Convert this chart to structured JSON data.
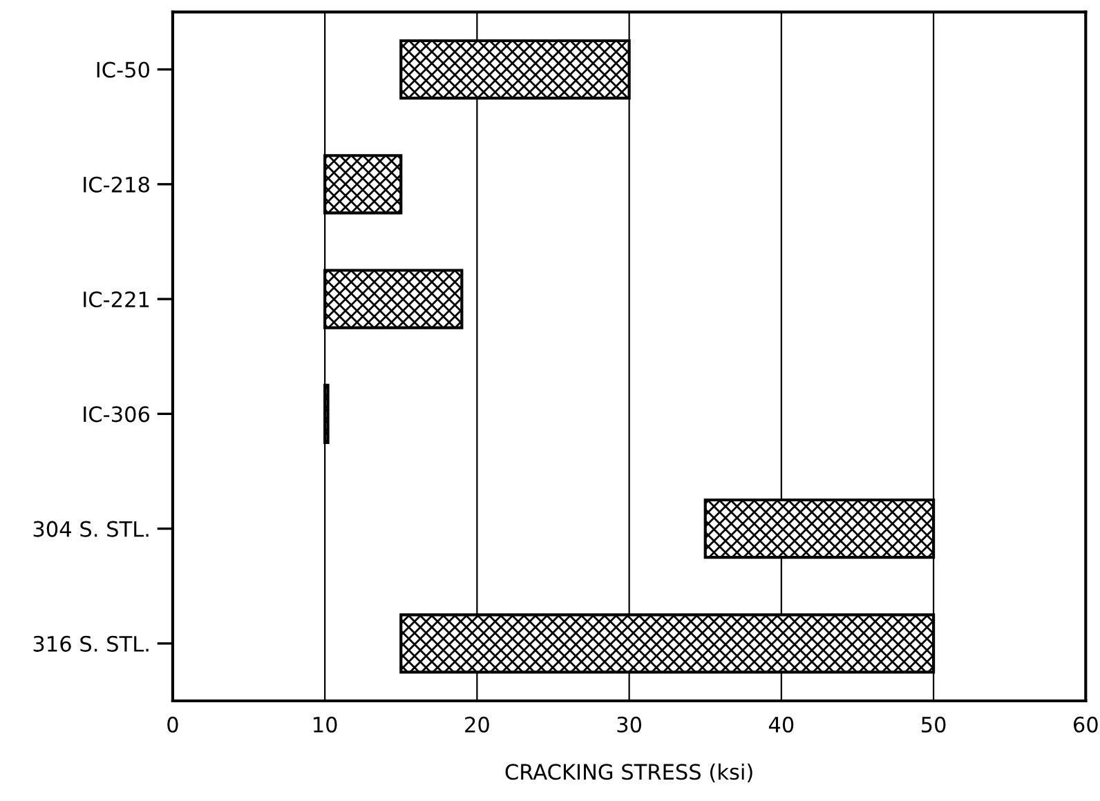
{
  "chart_data": {
    "type": "bar",
    "orientation": "horizontal",
    "xlabel": "CRACKING STRESS (ksi)",
    "categories": [
      "IC-50",
      "IC-218",
      "IC-221",
      "IC-306",
      "304 S. STL.",
      "316 S. STL."
    ],
    "base": [
      15,
      10,
      10,
      10,
      35,
      15
    ],
    "values": [
      15,
      5,
      9,
      0.2,
      15,
      35
    ],
    "color": "#000000",
    "xlim": [
      0,
      60
    ],
    "xticks": [
      0,
      10,
      20,
      30,
      40,
      50,
      60
    ],
    "grid": "x"
  }
}
